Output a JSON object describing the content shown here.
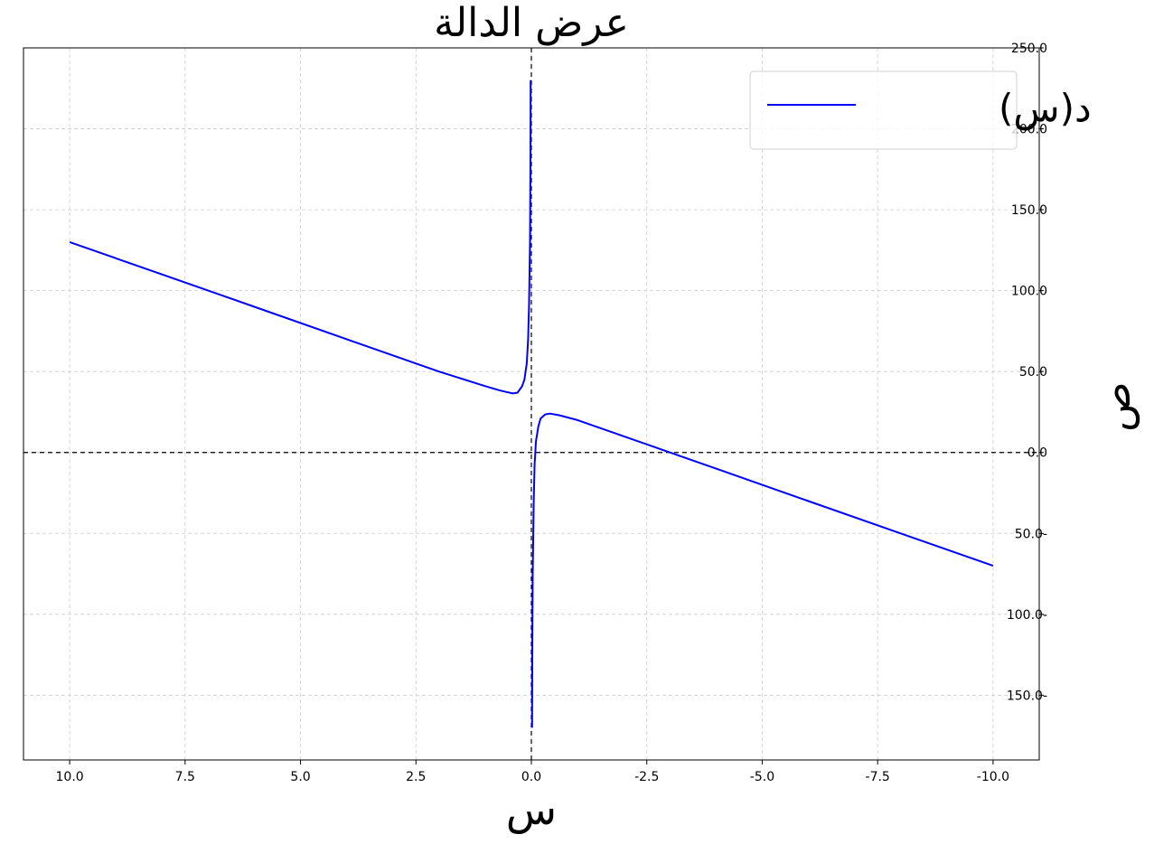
{
  "chart_data": {
    "type": "line",
    "title": "عرض الدالة",
    "xlabel": "س",
    "ylabel": "ص",
    "xlim": [
      11,
      -11
    ],
    "ylim": [
      -190,
      250
    ],
    "x_ticks": [
      10,
      7.5,
      5,
      2.5,
      0,
      -2.5,
      -5,
      -7.5,
      -10
    ],
    "x_tick_labels": [
      "10.0",
      "7.5",
      "5.0",
      "2.5",
      "0.0",
      "-2.5",
      "-5.0",
      "-7.5",
      "-10.0"
    ],
    "y_ticks": [
      250,
      200,
      150,
      100,
      50,
      0,
      -50,
      -100,
      -150
    ],
    "y_tick_labels": [
      "250.0",
      "200.0",
      "150.0",
      "100.0",
      "50.0",
      "0.0",
      "-50.0",
      "-100.0",
      "-150.0"
    ],
    "grid": true,
    "reference_lines": {
      "x": 0,
      "y": 0
    },
    "legend_position": "top-right",
    "series": [
      {
        "name": "د(س)",
        "color": "#0000ff",
        "segments": [
          [
            [
              10,
              130
            ],
            [
              8,
              110
            ],
            [
              6,
              90
            ],
            [
              4,
              70
            ],
            [
              2,
              50
            ],
            [
              1,
              41
            ],
            [
              0.7,
              38.5
            ],
            [
              0.55,
              37.4
            ],
            [
              0.4,
              36.5
            ],
            [
              0.3,
              37
            ],
            [
              0.2,
              41
            ],
            [
              0.15,
              45
            ],
            [
              0.1,
              55
            ],
            [
              0.07,
              70
            ],
            [
              0.05,
              90
            ],
            [
              0.03,
              130
            ],
            [
              0.02,
              180
            ],
            [
              0.015,
              230
            ]
          ],
          [
            [
              -0.015,
              -170
            ],
            [
              -0.02,
              -125
            ],
            [
              -0.03,
              -75
            ],
            [
              -0.05,
              -30
            ],
            [
              -0.07,
              -7
            ],
            [
              -0.1,
              7
            ],
            [
              -0.15,
              16
            ],
            [
              -0.2,
              21
            ],
            [
              -0.3,
              23.5
            ],
            [
              -0.4,
              24
            ],
            [
              -0.6,
              23
            ],
            [
              -1,
              20
            ],
            [
              -2,
              10
            ],
            [
              -3,
              0
            ],
            [
              -4,
              -10
            ],
            [
              -6,
              -30
            ],
            [
              -8,
              -50
            ],
            [
              -10,
              -70
            ]
          ]
        ]
      }
    ]
  }
}
